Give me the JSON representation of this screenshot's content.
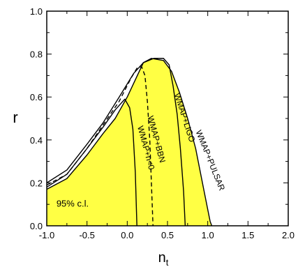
{
  "chart_data": {
    "type": "area",
    "xlabel": "n",
    "xlabel_sub": "t",
    "ylabel": "r",
    "xlim": [
      -1.0,
      2.0
    ],
    "ylim": [
      0.0,
      1.0
    ],
    "xticks": [
      "-1.0",
      "-0.5",
      "0.0",
      "0.5",
      "1.0",
      "1.5",
      "2.0"
    ],
    "yticks": [
      "0.0",
      "0.2",
      "0.4",
      "0.6",
      "0.8",
      "1.0"
    ],
    "annotation": "95% c.l.",
    "fill_color": "#ffff44",
    "region": {
      "x": [
        -1.0,
        -0.75,
        -0.5,
        -0.3,
        -0.15,
        0.0,
        0.1,
        0.2,
        0.3,
        0.45,
        0.55,
        0.65,
        0.75,
        0.85,
        0.95,
        1.03,
        1.05
      ],
      "y": [
        0.17,
        0.22,
        0.33,
        0.43,
        0.5,
        0.6,
        0.68,
        0.76,
        0.78,
        0.77,
        0.72,
        0.62,
        0.5,
        0.36,
        0.17,
        0.02,
        0.0
      ]
    },
    "series": [
      {
        "label": "WMAP+n<0",
        "style": "solid",
        "x": [
          -1.0,
          -0.75,
          -0.5,
          -0.3,
          -0.15,
          -0.03,
          0.03,
          0.07,
          0.1,
          0.12
        ],
        "y": [
          0.18,
          0.24,
          0.36,
          0.46,
          0.54,
          0.59,
          0.55,
          0.45,
          0.25,
          0.0
        ]
      },
      {
        "label": "WMAP+BBN",
        "style": "dashed",
        "x": [
          -1.0,
          -0.75,
          -0.5,
          -0.3,
          -0.1,
          0.05,
          0.13,
          0.18,
          0.22,
          0.25,
          0.28,
          0.3,
          0.32
        ],
        "y": [
          0.19,
          0.24,
          0.36,
          0.47,
          0.58,
          0.69,
          0.74,
          0.74,
          0.7,
          0.58,
          0.4,
          0.2,
          0.0
        ]
      },
      {
        "label": "WMAP+LIGO",
        "style": "solid",
        "x": [
          -1.0,
          -0.75,
          -0.5,
          -0.3,
          -0.1,
          0.08,
          0.2,
          0.33,
          0.45,
          0.52,
          0.57,
          0.62,
          0.66,
          0.7,
          0.72
        ],
        "y": [
          0.2,
          0.26,
          0.38,
          0.48,
          0.6,
          0.71,
          0.76,
          0.78,
          0.78,
          0.75,
          0.65,
          0.52,
          0.36,
          0.16,
          0.0
        ]
      },
      {
        "label": "WMAP+PULSAR",
        "style": "solid",
        "x": [
          -1.0,
          -0.75,
          -0.5,
          -0.3,
          -0.15,
          0.0,
          0.1,
          0.2,
          0.3,
          0.45,
          0.55,
          0.65,
          0.75,
          0.85,
          0.95,
          1.03,
          1.05
        ],
        "y": [
          0.17,
          0.22,
          0.33,
          0.43,
          0.5,
          0.6,
          0.68,
          0.76,
          0.78,
          0.77,
          0.72,
          0.62,
          0.5,
          0.36,
          0.17,
          0.02,
          0.0
        ]
      }
    ],
    "curve_labels": [
      {
        "text": "WMAP+BBN",
        "x": 0.33,
        "y": 0.4,
        "angle": 75
      },
      {
        "text": "WMAP+n<0",
        "x": 0.2,
        "y": 0.36,
        "angle": 75
      },
      {
        "text": "WMAP+LIGO",
        "x": 0.68,
        "y": 0.5,
        "angle": 72
      },
      {
        "text": "WMAP+PULSAR",
        "x": 1.0,
        "y": 0.3,
        "angle": 68
      }
    ]
  }
}
